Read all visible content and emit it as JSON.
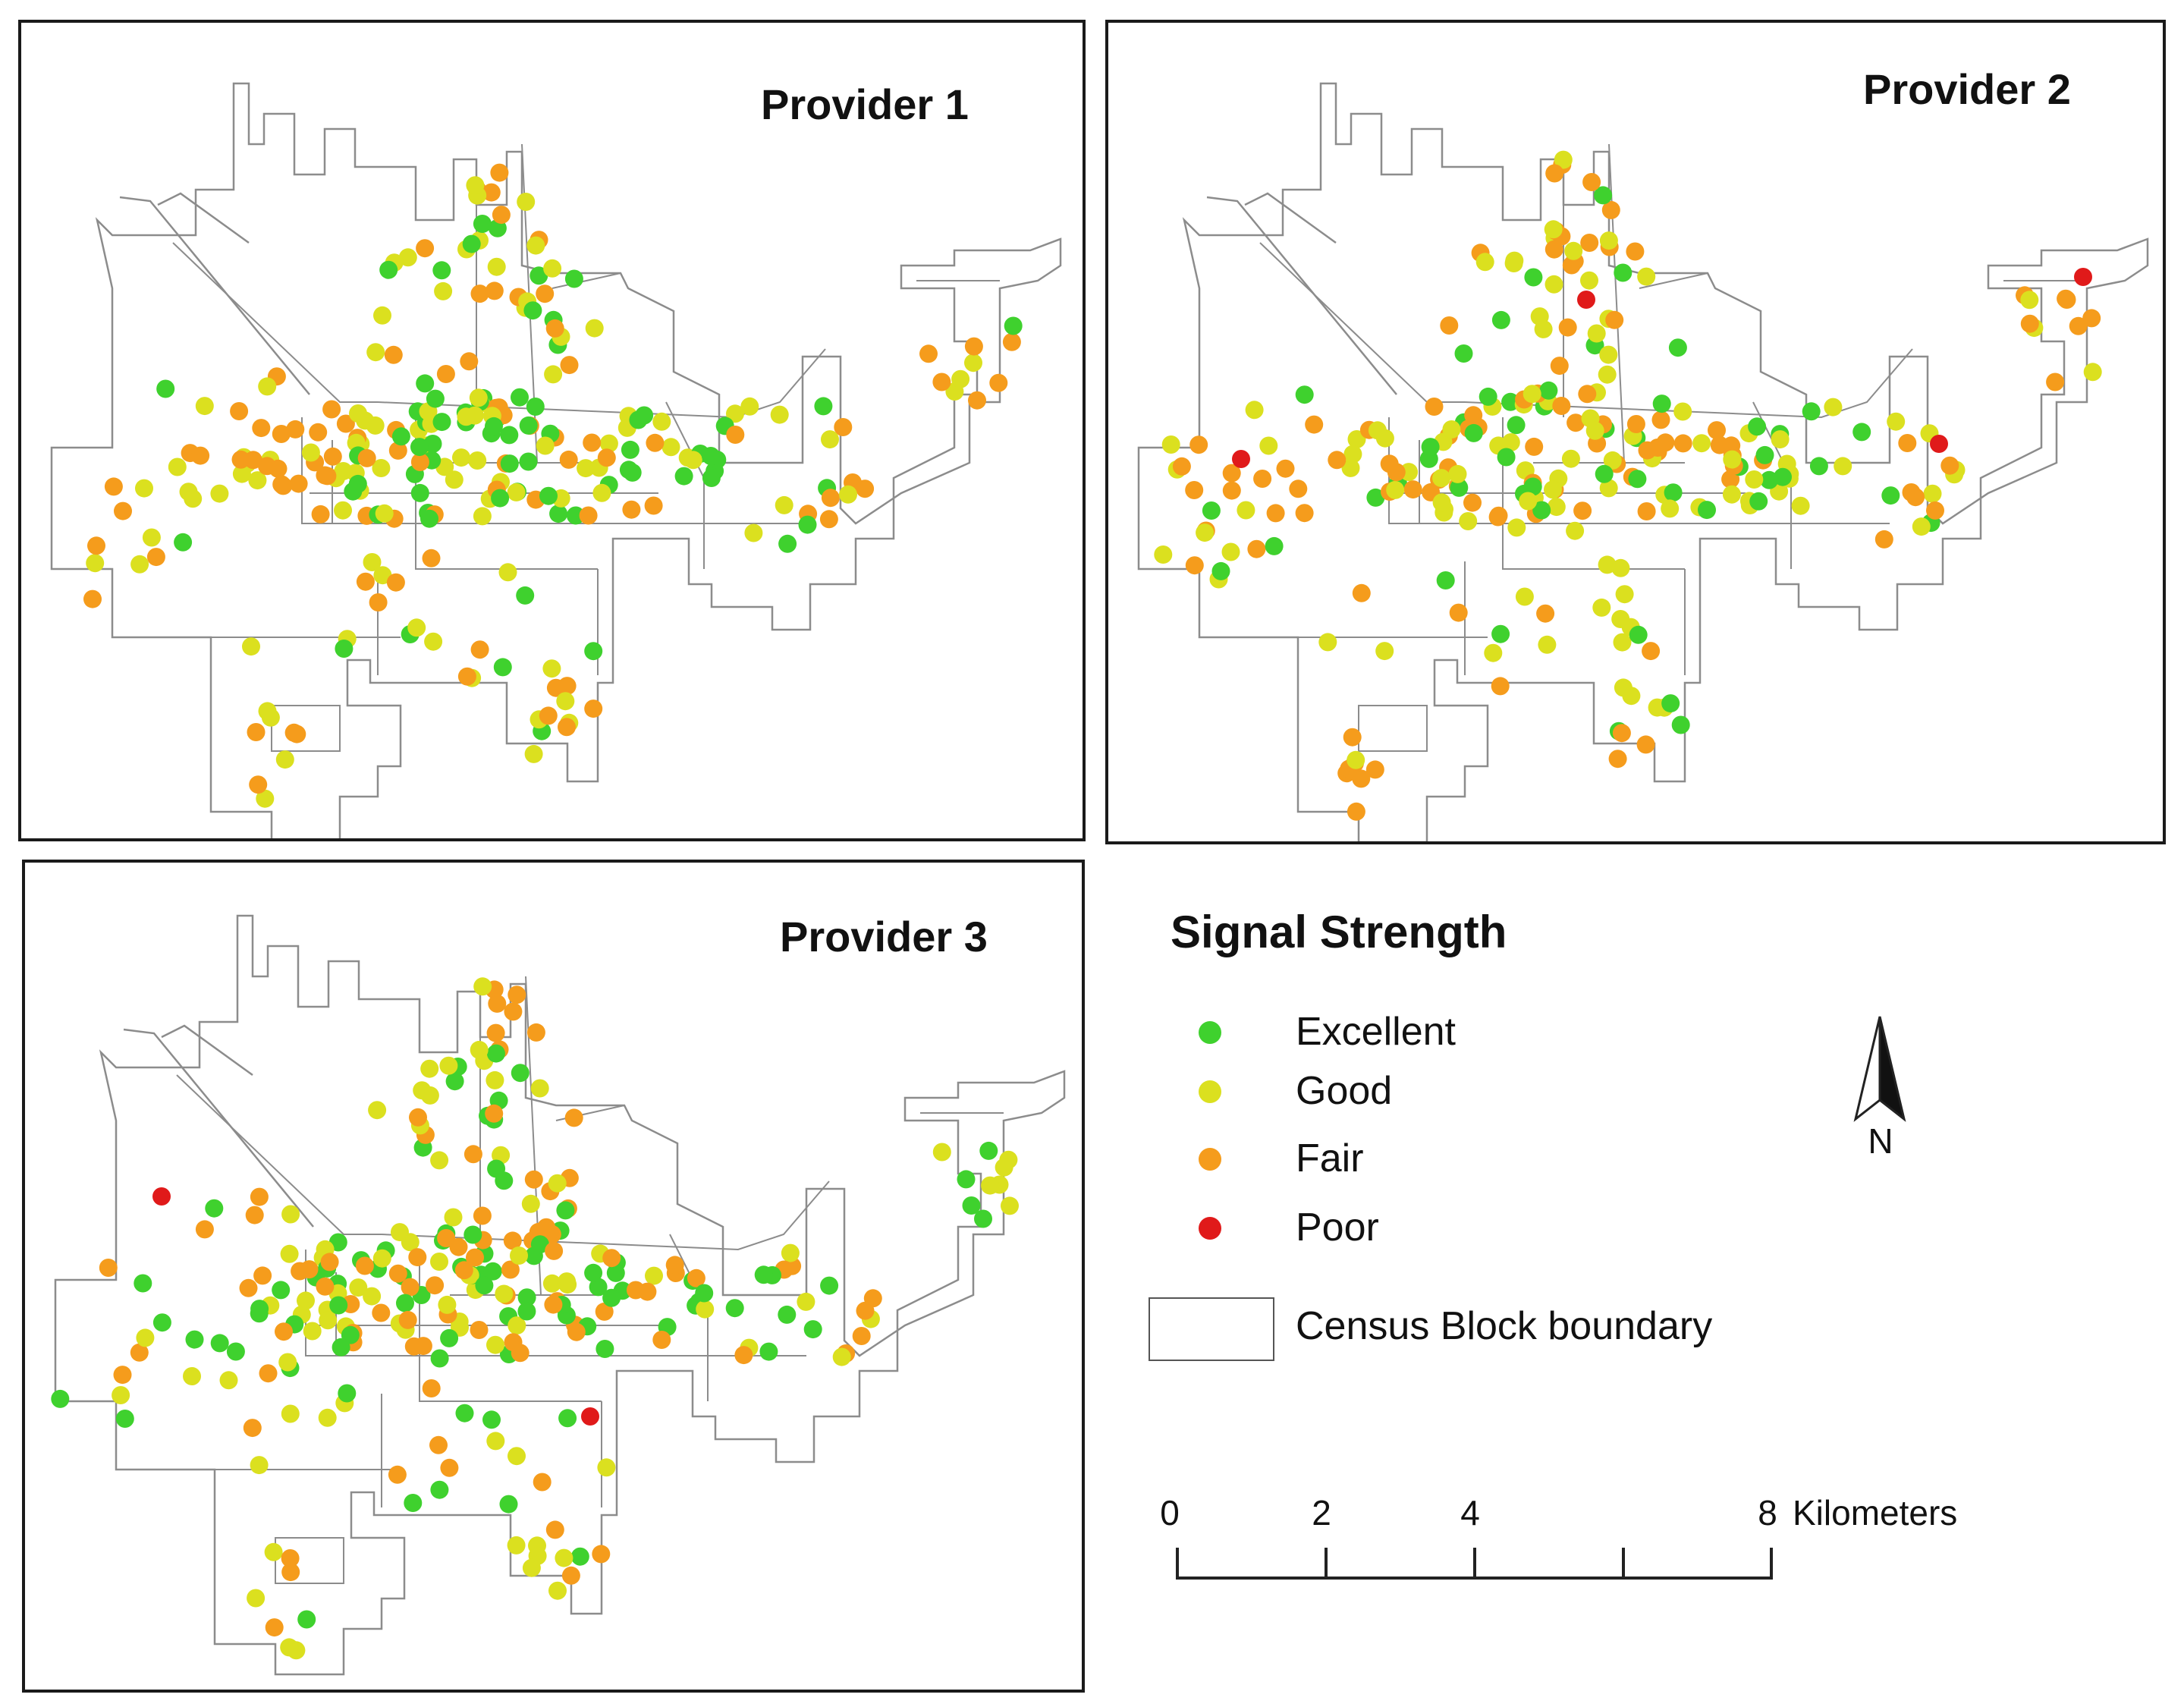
{
  "panels": [
    {
      "title": "Provider 1"
    },
    {
      "title": "Provider 2"
    },
    {
      "title": "Provider 3"
    }
  ],
  "legend": {
    "title": "Signal Strength",
    "items": [
      {
        "label": "Excellent",
        "color": "#3fd12e"
      },
      {
        "label": "Good",
        "color": "#dbe01f"
      },
      {
        "label": "Fair",
        "color": "#f59c1c"
      },
      {
        "label": "Poor",
        "color": "#e01a1a"
      }
    ],
    "boundary_label": "Census Block boundary"
  },
  "scale": {
    "ticks": [
      "0",
      "2",
      "4",
      "8"
    ],
    "unit": "Kilometers"
  },
  "north_label": "N"
}
